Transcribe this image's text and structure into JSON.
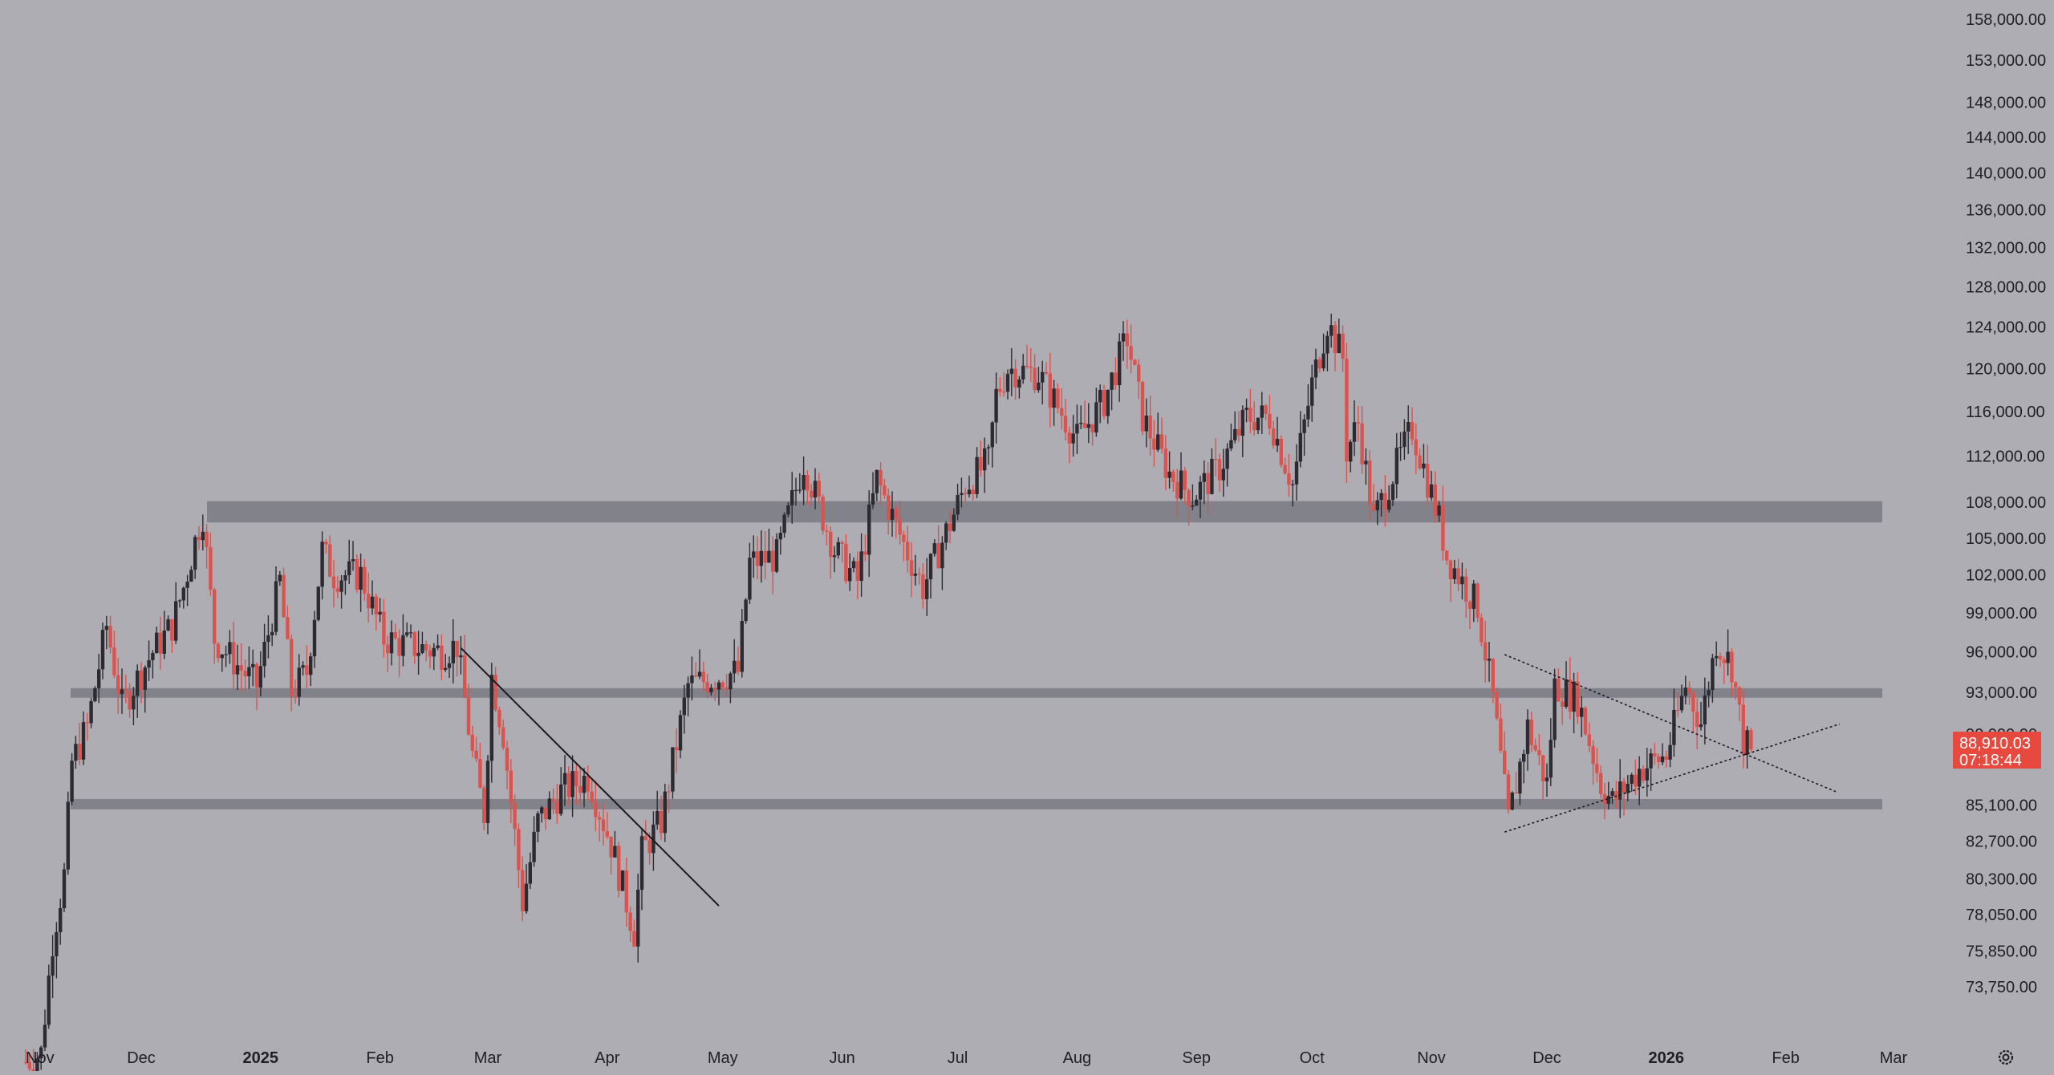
{
  "colors": {
    "background": "#aeadb3",
    "bull": "#2b2b31",
    "bear": "#d9534f",
    "zone": "#7a7a82",
    "trendline": "#1b1b1f",
    "price_tag": "#e8493f",
    "axis_text": "#1f1f23"
  },
  "icons": {
    "settings": "gear-icon"
  },
  "chart_data": {
    "type": "candlestick",
    "title": "",
    "xlabel": "",
    "ylabel": "",
    "y_scale": "log",
    "ylim": [
      72500,
      158000
    ],
    "xlim": [
      "2024-11-01",
      "2026-03-01"
    ],
    "grid": false,
    "y_ticks": [
      "158,000.00",
      "153,000.00",
      "148,000.00",
      "144,000.00",
      "140,000.00",
      "136,000.00",
      "132,000.00",
      "128,000.00",
      "124,000.00",
      "120,000.00",
      "116,000.00",
      "112,000.00",
      "108,000.00",
      "105,000.00",
      "102,000.00",
      "99,000.00",
      "96,000.00",
      "93,000.00",
      "90,000.00",
      "85,100.00",
      "82,700.00",
      "80,300.00",
      "78,050.00",
      "75,850.00",
      "73,750.00"
    ],
    "x_ticks": [
      {
        "label": "Nov",
        "date": "2024-11-01",
        "bold": false
      },
      {
        "label": "Dec",
        "date": "2024-12-01",
        "bold": false
      },
      {
        "label": "2025",
        "date": "2025-01-01",
        "bold": true
      },
      {
        "label": "Feb",
        "date": "2025-02-01",
        "bold": false
      },
      {
        "label": "Mar",
        "date": "2025-03-01",
        "bold": false
      },
      {
        "label": "Apr",
        "date": "2025-04-01",
        "bold": false
      },
      {
        "label": "May",
        "date": "2025-05-01",
        "bold": false
      },
      {
        "label": "Jun",
        "date": "2025-06-01",
        "bold": false
      },
      {
        "label": "Jul",
        "date": "2025-07-01",
        "bold": false
      },
      {
        "label": "Aug",
        "date": "2025-08-01",
        "bold": false
      },
      {
        "label": "Sep",
        "date": "2025-09-01",
        "bold": false
      },
      {
        "label": "Oct",
        "date": "2025-10-01",
        "bold": false
      },
      {
        "label": "Nov",
        "date": "2025-11-01",
        "bold": false
      },
      {
        "label": "Dec",
        "date": "2025-12-01",
        "bold": false
      },
      {
        "label": "2026",
        "date": "2026-01-01",
        "bold": true
      },
      {
        "label": "Feb",
        "date": "2026-02-01",
        "bold": false
      },
      {
        "label": "Mar",
        "date": "2026-03-01",
        "bold": false
      }
    ],
    "closes": [
      {
        "date": "2024-11-01",
        "close": 69500
      },
      {
        "date": "2024-11-05",
        "close": 70000
      },
      {
        "date": "2024-11-08",
        "close": 76500
      },
      {
        "date": "2024-11-11",
        "close": 80500
      },
      {
        "date": "2024-11-13",
        "close": 88000
      },
      {
        "date": "2024-11-17",
        "close": 90500
      },
      {
        "date": "2024-11-22",
        "close": 98000
      },
      {
        "date": "2024-11-26",
        "close": 92000
      },
      {
        "date": "2024-12-04",
        "close": 96000
      },
      {
        "date": "2024-12-09",
        "close": 98000
      },
      {
        "date": "2024-12-12",
        "close": 101000
      },
      {
        "date": "2024-12-16",
        "close": 106000
      },
      {
        "date": "2024-12-17",
        "close": 107000
      },
      {
        "date": "2024-12-20",
        "close": 97000
      },
      {
        "date": "2024-12-26",
        "close": 95000
      },
      {
        "date": "2024-12-31",
        "close": 93500
      },
      {
        "date": "2025-01-06",
        "close": 101500
      },
      {
        "date": "2025-01-09",
        "close": 93000
      },
      {
        "date": "2025-01-13",
        "close": 94500
      },
      {
        "date": "2025-01-17",
        "close": 104000
      },
      {
        "date": "2025-01-20",
        "close": 102000
      },
      {
        "date": "2025-01-27",
        "close": 102000
      },
      {
        "date": "2025-02-02",
        "close": 97000
      },
      {
        "date": "2025-02-08",
        "close": 96500
      },
      {
        "date": "2025-02-17",
        "close": 96000
      },
      {
        "date": "2025-02-21",
        "close": 96500
      },
      {
        "date": "2025-02-25",
        "close": 88500
      },
      {
        "date": "2025-02-28",
        "close": 84500
      },
      {
        "date": "2025-03-02",
        "close": 94200
      },
      {
        "date": "2025-03-05",
        "close": 90000
      },
      {
        "date": "2025-03-10",
        "close": 78800
      },
      {
        "date": "2025-03-14",
        "close": 84000
      },
      {
        "date": "2025-03-20",
        "close": 86000
      },
      {
        "date": "2025-03-27",
        "close": 87000
      },
      {
        "date": "2025-04-02",
        "close": 82500
      },
      {
        "date": "2025-04-08",
        "close": 77000
      },
      {
        "date": "2025-04-10",
        "close": 82000
      },
      {
        "date": "2025-04-15",
        "close": 84000
      },
      {
        "date": "2025-04-22",
        "close": 93500
      },
      {
        "date": "2025-04-28",
        "close": 94000
      },
      {
        "date": "2025-05-05",
        "close": 94500
      },
      {
        "date": "2025-05-08",
        "close": 103000
      },
      {
        "date": "2025-05-15",
        "close": 103500
      },
      {
        "date": "2025-05-22",
        "close": 111500
      },
      {
        "date": "2025-05-30",
        "close": 104000
      },
      {
        "date": "2025-06-05",
        "close": 101500
      },
      {
        "date": "2025-06-10",
        "close": 110000
      },
      {
        "date": "2025-06-17",
        "close": 104500
      },
      {
        "date": "2025-06-22",
        "close": 101000
      },
      {
        "date": "2025-06-30",
        "close": 107000
      },
      {
        "date": "2025-07-03",
        "close": 109500
      },
      {
        "date": "2025-07-09",
        "close": 111500
      },
      {
        "date": "2025-07-11",
        "close": 117500
      },
      {
        "date": "2025-07-14",
        "close": 120000
      },
      {
        "date": "2025-07-22",
        "close": 119500
      },
      {
        "date": "2025-08-01",
        "close": 113500
      },
      {
        "date": "2025-08-08",
        "close": 117000
      },
      {
        "date": "2025-08-14",
        "close": 123000
      },
      {
        "date": "2025-08-18",
        "close": 115500
      },
      {
        "date": "2025-08-25",
        "close": 110500
      },
      {
        "date": "2025-08-31",
        "close": 108500
      },
      {
        "date": "2025-09-07",
        "close": 111000
      },
      {
        "date": "2025-09-14",
        "close": 115500
      },
      {
        "date": "2025-09-20",
        "close": 115500
      },
      {
        "date": "2025-09-26",
        "close": 109500
      },
      {
        "date": "2025-10-01",
        "close": 118500
      },
      {
        "date": "2025-10-05",
        "close": 124500
      },
      {
        "date": "2025-10-09",
        "close": 121000
      },
      {
        "date": "2025-10-10",
        "close": 112500
      },
      {
        "date": "2025-10-13",
        "close": 115000
      },
      {
        "date": "2025-10-17",
        "close": 106500
      },
      {
        "date": "2025-10-27",
        "close": 114500
      },
      {
        "date": "2025-11-03",
        "close": 106500
      },
      {
        "date": "2025-11-05",
        "close": 103500
      },
      {
        "date": "2025-11-13",
        "close": 99500
      },
      {
        "date": "2025-11-17",
        "close": 92500
      },
      {
        "date": "2025-11-21",
        "close": 84000
      },
      {
        "date": "2025-11-26",
        "close": 90500
      },
      {
        "date": "2025-12-01",
        "close": 86500
      },
      {
        "date": "2025-12-03",
        "close": 93500
      },
      {
        "date": "2025-12-09",
        "close": 92500
      },
      {
        "date": "2025-12-15",
        "close": 86500
      },
      {
        "date": "2025-12-18",
        "close": 85300
      },
      {
        "date": "2025-12-25",
        "close": 87500
      },
      {
        "date": "2026-01-01",
        "close": 88500
      },
      {
        "date": "2026-01-06",
        "close": 93500
      },
      {
        "date": "2026-01-10",
        "close": 90800
      },
      {
        "date": "2026-01-14",
        "close": 96800
      },
      {
        "date": "2026-01-18",
        "close": 95000
      },
      {
        "date": "2026-01-21",
        "close": 89500
      },
      {
        "date": "2026-01-23",
        "close": 88910
      }
    ],
    "zones": [
      {
        "from": 106300,
        "to": 108100
      },
      {
        "from": 92600,
        "to": 93300
      },
      {
        "from": 84800,
        "to": 85500
      }
    ],
    "lines": [
      {
        "style": "solid",
        "from": {
          "date": "2025-02-22",
          "price": 96300
        },
        "to": {
          "date": "2025-04-30",
          "price": 78600
        }
      },
      {
        "style": "dotted",
        "from": {
          "date": "2025-11-20",
          "price": 95800
        },
        "to": {
          "date": "2026-02-14",
          "price": 86000
        }
      },
      {
        "style": "dotted",
        "from": {
          "date": "2025-11-20",
          "price": 83300
        },
        "to": {
          "date": "2026-02-15",
          "price": 90700
        }
      }
    ],
    "last_price": {
      "price": 88910,
      "label": "88,910.03",
      "countdown": "07:18:44"
    }
  }
}
